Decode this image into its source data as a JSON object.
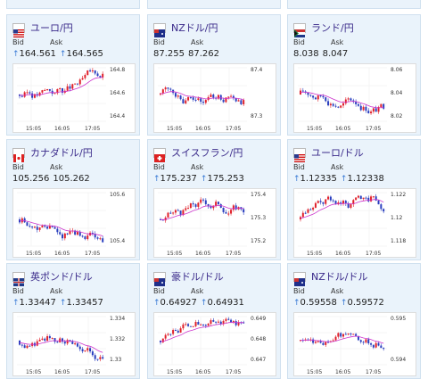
{
  "cards": [
    {
      "id": "usdjpy",
      "name": "ユーロ/円",
      "bid": "164.561",
      "ask": "164.565",
      "flag": "us",
      "yticks": [
        "164.8",
        "164.6",
        "164.4"
      ],
      "xticks": [
        "15:05",
        "16:05",
        "17:05"
      ],
      "arrow_bid": "up",
      "arrow_ask": "up"
    },
    {
      "id": "nzdjpy",
      "name": "NZドル/円",
      "bid": "87.255",
      "ask": "87.262",
      "flag": "nz",
      "yticks": [
        "87.4",
        "87.3"
      ],
      "xticks": [
        "15:05",
        "16:05",
        "17:05"
      ],
      "arrow_bid": "none",
      "arrow_ask": "none"
    },
    {
      "id": "zarjpy",
      "name": "ランド/円",
      "bid": "8.038",
      "ask": "8.047",
      "flag": "za",
      "yticks": [
        "8.06",
        "8.04",
        "8.02"
      ],
      "xticks": [
        "15:05",
        "16:05",
        "17:05"
      ],
      "arrow_bid": "none",
      "arrow_ask": "none"
    },
    {
      "id": "cadjpy",
      "name": "カナダドル/円",
      "bid": "105.256",
      "ask": "105.262",
      "flag": "ca",
      "yticks": [
        "105.6",
        "105.4"
      ],
      "xticks": [
        "15:05",
        "16:05",
        "17:05"
      ],
      "arrow_bid": "none",
      "arrow_ask": "none"
    },
    {
      "id": "chfjpy",
      "name": "スイスフラン/円",
      "bid": "175.237",
      "ask": "175.253",
      "flag": "ch",
      "yticks": [
        "175.4",
        "175.3",
        "175.2"
      ],
      "xticks": [
        "15:05",
        "16:05",
        "17:05"
      ],
      "arrow_bid": "up",
      "arrow_ask": "up"
    },
    {
      "id": "eurusd",
      "name": "ユーロ/ドル",
      "bid": "1.12335",
      "ask": "1.12338",
      "flag": "us",
      "yticks": [
        "1.122",
        "1.12",
        "1.118"
      ],
      "xticks": [
        "15:05",
        "16:05",
        "17:05"
      ],
      "arrow_bid": "up",
      "arrow_ask": "up"
    },
    {
      "id": "gbpusd",
      "name": "英ポンド/ドル",
      "bid": "1.33447",
      "ask": "1.33457",
      "flag": "gb",
      "yticks": [
        "1.334",
        "1.332",
        "1.33"
      ],
      "xticks": [
        "15:05",
        "16:05",
        "17:05"
      ],
      "arrow_bid": "up",
      "arrow_ask": "up"
    },
    {
      "id": "audusd",
      "name": "豪ドル/ドル",
      "bid": "0.64927",
      "ask": "0.64931",
      "flag": "au",
      "yticks": [
        "0.649",
        "0.648",
        "0.647"
      ],
      "xticks": [
        "15:05",
        "16:05",
        "17:05"
      ],
      "arrow_bid": "up",
      "arrow_ask": "up"
    },
    {
      "id": "nzdusd",
      "name": "NZドル/ドル",
      "bid": "0.59558",
      "ask": "0.59572",
      "flag": "nz",
      "yticks": [
        "0.595",
        "0.594"
      ],
      "xticks": [
        "15:05",
        "16:05",
        "17:05"
      ],
      "arrow_bid": "up",
      "arrow_ask": "up"
    }
  ],
  "labels": {
    "bid": "Bid",
    "ask": "Ask"
  },
  "colors": {
    "up": "#e0202a",
    "down": "#2a3fbf",
    "ma": "#cc33cc",
    "title": "#3a2a8a"
  }
}
